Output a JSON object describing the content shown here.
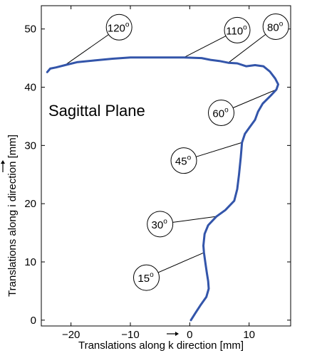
{
  "chart_data": {
    "type": "line",
    "annotation_title": "Sagittal Plane",
    "xlabel": "Translations along k direction [mm]",
    "ylabel": "Translations along i direction [mm]",
    "xlim": [
      -25,
      17
    ],
    "ylim": [
      -1,
      54
    ],
    "xticks": [
      -20,
      -10,
      0,
      10
    ],
    "yticks": [
      0,
      10,
      20,
      30,
      40,
      50
    ],
    "grid": false,
    "series": [
      {
        "color": "#3355aa",
        "points": [
          [
            0.2,
            0.0
          ],
          [
            1.0,
            1.3
          ],
          [
            1.9,
            2.7
          ],
          [
            2.8,
            4.0
          ],
          [
            3.2,
            5.4
          ],
          [
            3.1,
            6.7
          ],
          [
            2.9,
            8.0
          ],
          [
            2.7,
            9.4
          ],
          [
            2.5,
            10.8
          ],
          [
            2.4,
            11.6
          ],
          [
            2.3,
            12.8
          ],
          [
            2.5,
            14.8
          ],
          [
            3.1,
            16.3
          ],
          [
            4.5,
            17.8
          ],
          [
            6.0,
            18.9
          ],
          [
            7.5,
            20.5
          ],
          [
            8.0,
            22.5
          ],
          [
            8.3,
            25.0
          ],
          [
            8.6,
            28.0
          ],
          [
            8.8,
            30.5
          ],
          [
            9.3,
            32.0
          ],
          [
            10.0,
            33.0
          ],
          [
            11.0,
            34.4
          ],
          [
            11.5,
            35.8
          ],
          [
            12.3,
            37.2
          ],
          [
            13.5,
            38.4
          ],
          [
            14.6,
            39.6
          ],
          [
            14.9,
            40.5
          ],
          [
            14.4,
            41.5
          ],
          [
            13.5,
            42.7
          ],
          [
            12.4,
            43.6
          ],
          [
            11.0,
            43.8
          ],
          [
            9.5,
            43.6
          ],
          [
            8.0,
            44.1
          ],
          [
            6.5,
            44.2
          ],
          [
            5.0,
            44.5
          ],
          [
            3.5,
            44.7
          ],
          [
            2.0,
            45.0
          ],
          [
            -1.0,
            45.1
          ],
          [
            -4.0,
            45.1
          ],
          [
            -7.0,
            45.1
          ],
          [
            -10.0,
            45.1
          ],
          [
            -13.0,
            44.9
          ],
          [
            -16.0,
            44.6
          ],
          [
            -19.0,
            44.3
          ],
          [
            -21.0,
            43.8
          ],
          [
            -22.5,
            43.4
          ],
          [
            -23.5,
            43.2
          ],
          [
            -24.0,
            42.6
          ]
        ]
      }
    ],
    "annotations": [
      {
        "label": "15",
        "superscript": "o",
        "at": [
          2.4,
          11.6
        ],
        "circle": [
          -7.3,
          7.3
        ]
      },
      {
        "label": "30",
        "superscript": "o",
        "at": [
          4.5,
          17.8
        ],
        "circle": [
          -5.0,
          16.5
        ]
      },
      {
        "label": "45",
        "superscript": "o",
        "at": [
          8.8,
          30.5
        ],
        "circle": [
          -1.0,
          27.4
        ]
      },
      {
        "label": "60",
        "superscript": "o",
        "at": [
          14.6,
          39.6
        ],
        "circle": [
          5.3,
          35.6
        ]
      },
      {
        "label": "80",
        "superscript": "o",
        "at": [
          6.5,
          44.2
        ],
        "circle": [
          14.5,
          50.4
        ]
      },
      {
        "label": "110",
        "superscript": "o",
        "at": [
          -1.0,
          45.1
        ],
        "circle": [
          8.0,
          49.8
        ]
      },
      {
        "label": "120",
        "superscript": "o",
        "at": [
          -21.0,
          43.8
        ],
        "circle": [
          -11.9,
          50.3
        ]
      }
    ]
  }
}
